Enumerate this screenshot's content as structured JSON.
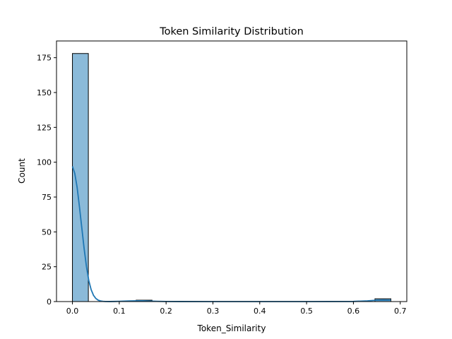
{
  "chart_data": {
    "type": "bar",
    "title": "Token Similarity Distribution",
    "xlabel": "Token_Similarity",
    "ylabel": "Count",
    "xlim": [
      -0.034,
      0.714
    ],
    "ylim": [
      0,
      187
    ],
    "grid": false,
    "x_ticks": [
      0.0,
      0.1,
      0.2,
      0.3,
      0.4,
      0.5,
      0.6,
      0.7
    ],
    "x_tick_labels": [
      "0.0",
      "0.1",
      "0.2",
      "0.3",
      "0.4",
      "0.5",
      "0.6",
      "0.7"
    ],
    "y_ticks": [
      0,
      25,
      50,
      75,
      100,
      125,
      150,
      175
    ],
    "y_tick_labels": [
      "0",
      "25",
      "50",
      "75",
      "100",
      "125",
      "150",
      "175"
    ],
    "bins": [
      {
        "x0": 0.0,
        "x1": 0.034,
        "count": 178
      },
      {
        "x0": 0.136,
        "x1": 0.17,
        "count": 1
      },
      {
        "x0": 0.646,
        "x1": 0.68,
        "count": 2
      }
    ],
    "kde": {
      "x": [
        0.0,
        0.005,
        0.01,
        0.015,
        0.02,
        0.025,
        0.03,
        0.035,
        0.04,
        0.045,
        0.05,
        0.055,
        0.06,
        0.065,
        0.07,
        0.08,
        0.09,
        0.1,
        0.12,
        0.14,
        0.15,
        0.16,
        0.18,
        0.2,
        0.3,
        0.4,
        0.5,
        0.6,
        0.63,
        0.65,
        0.665,
        0.68
      ],
      "y": [
        97,
        92,
        82,
        68,
        53,
        38,
        25,
        15,
        8.5,
        4.5,
        2.2,
        1.0,
        0.45,
        0.2,
        0.08,
        0.02,
        0.1,
        0.2,
        0.4,
        0.55,
        0.55,
        0.45,
        0.2,
        0.05,
        0.0,
        0.0,
        0.0,
        0.1,
        0.5,
        1.0,
        1.1,
        1.0
      ]
    },
    "colors": {
      "bar_fill": "#8bbad9",
      "bar_edge": "#000000",
      "kde_line": "#1f77b4"
    }
  }
}
